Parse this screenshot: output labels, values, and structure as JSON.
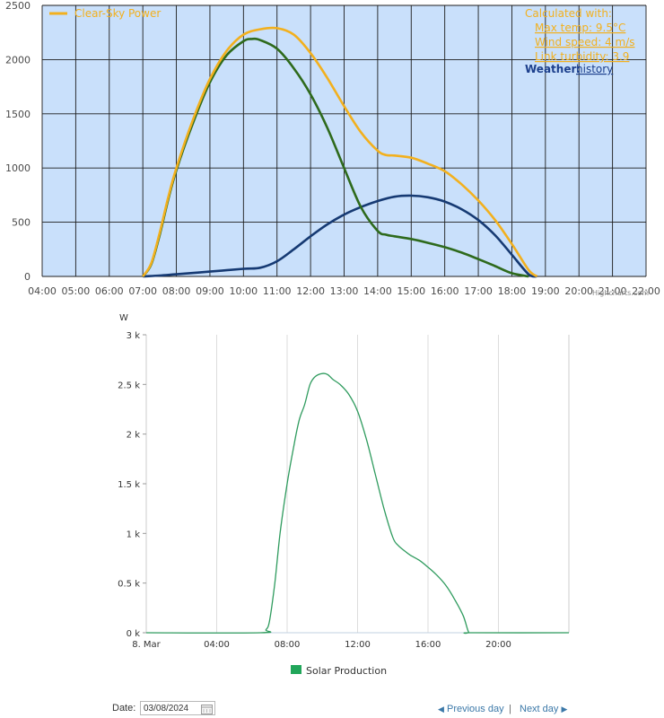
{
  "chart_data": [
    {
      "type": "line",
      "x_ticks": [
        "04:00",
        "05:00",
        "06:00",
        "07:00",
        "08:00",
        "09:00",
        "10:00",
        "11:00",
        "12:00",
        "13:00",
        "14:00",
        "15:00",
        "16:00",
        "17:00",
        "18:00",
        "19:00",
        "20:00",
        "21:00",
        "22:00"
      ],
      "y_ticks": [
        "0",
        "500",
        "1000",
        "1500",
        "2000",
        "2500"
      ],
      "ylim": [
        0,
        2500
      ],
      "xlim": [
        4,
        22
      ],
      "background": "#c9e0fb",
      "grid": true,
      "legend": {
        "position": "top-left",
        "label": "Clear-Sky Power",
        "color": "#f2b01e"
      },
      "series": [
        {
          "name": "Clear-Sky Power",
          "color": "#f2b01e",
          "points": [
            [
              7.0,
              0
            ],
            [
              7.25,
              120
            ],
            [
              7.5,
              400
            ],
            [
              7.75,
              720
            ],
            [
              8.0,
              1000
            ],
            [
              8.5,
              1450
            ],
            [
              9.0,
              1820
            ],
            [
              9.5,
              2080
            ],
            [
              10.0,
              2230
            ],
            [
              10.5,
              2280
            ],
            [
              11.0,
              2290
            ],
            [
              11.5,
              2230
            ],
            [
              12.0,
              2060
            ],
            [
              12.5,
              1830
            ],
            [
              13.0,
              1570
            ],
            [
              13.5,
              1330
            ],
            [
              14.0,
              1160
            ],
            [
              14.25,
              1120
            ],
            [
              14.5,
              1115
            ],
            [
              15.0,
              1095
            ],
            [
              15.5,
              1040
            ],
            [
              16.0,
              970
            ],
            [
              16.5,
              850
            ],
            [
              17.0,
              700
            ],
            [
              17.5,
              520
            ],
            [
              18.0,
              300
            ],
            [
              18.5,
              60
            ],
            [
              18.75,
              0
            ]
          ]
        },
        {
          "color": "#2e6a1c",
          "points": [
            [
              7.0,
              0
            ],
            [
              7.25,
              110
            ],
            [
              7.5,
              380
            ],
            [
              7.75,
              700
            ],
            [
              8.0,
              980
            ],
            [
              8.5,
              1420
            ],
            [
              9.0,
              1790
            ],
            [
              9.5,
              2040
            ],
            [
              10.0,
              2170
            ],
            [
              10.25,
              2190
            ],
            [
              10.5,
              2180
            ],
            [
              11.0,
              2100
            ],
            [
              11.5,
              1920
            ],
            [
              12.0,
              1680
            ],
            [
              12.5,
              1370
            ],
            [
              13.0,
              1000
            ],
            [
              13.5,
              640
            ],
            [
              14.0,
              420
            ],
            [
              14.25,
              385
            ],
            [
              14.5,
              370
            ],
            [
              15.0,
              345
            ],
            [
              15.5,
              310
            ],
            [
              16.0,
              270
            ],
            [
              16.5,
              220
            ],
            [
              17.0,
              160
            ],
            [
              17.5,
              95
            ],
            [
              18.0,
              30
            ],
            [
              18.5,
              0
            ]
          ]
        },
        {
          "color": "#163a73",
          "points": [
            [
              7.0,
              0
            ],
            [
              7.5,
              8
            ],
            [
              8.0,
              20
            ],
            [
              9.0,
              45
            ],
            [
              10.0,
              70
            ],
            [
              10.5,
              80
            ],
            [
              11.0,
              140
            ],
            [
              11.5,
              250
            ],
            [
              12.0,
              370
            ],
            [
              12.5,
              480
            ],
            [
              13.0,
              570
            ],
            [
              13.5,
              640
            ],
            [
              14.0,
              695
            ],
            [
              14.5,
              735
            ],
            [
              15.0,
              745
            ],
            [
              15.5,
              730
            ],
            [
              16.0,
              690
            ],
            [
              16.5,
              620
            ],
            [
              17.0,
              520
            ],
            [
              17.5,
              380
            ],
            [
              18.0,
              200
            ],
            [
              18.5,
              20
            ],
            [
              18.75,
              0
            ]
          ]
        }
      ],
      "info": {
        "heading": "Calculated with:",
        "items": [
          "Max temp: 9.5°C",
          "Wind speed: 4 m/s",
          "Link turbidity: 3.9"
        ],
        "weather_label": "Weather:",
        "weather_link": "history"
      },
      "credit": "Highcharts.com"
    },
    {
      "type": "area",
      "ylabel": "W",
      "y_ticks": [
        "0 k",
        "0.5 k",
        "1 k",
        "1.5 k",
        "2 k",
        "2.5 k",
        "3 k"
      ],
      "ylim": [
        0,
        3000
      ],
      "x_ticks": [
        "8. Mar",
        "04:00",
        "08:00",
        "12:00",
        "16:00",
        "20:00"
      ],
      "xlim": [
        0,
        24
      ],
      "legend": {
        "position": "bottom-center",
        "label": "Solar Production",
        "color": "#21a65a"
      },
      "series": [
        {
          "name": "Solar Production",
          "color": "#2f9b5e",
          "points": [
            [
              0,
              0
            ],
            [
              6.5,
              0
            ],
            [
              6.8,
              30
            ],
            [
              7.0,
              120
            ],
            [
              7.3,
              500
            ],
            [
              7.6,
              1000
            ],
            [
              8.0,
              1500
            ],
            [
              8.4,
              1900
            ],
            [
              8.7,
              2150
            ],
            [
              9.0,
              2300
            ],
            [
              9.3,
              2500
            ],
            [
              9.6,
              2580
            ],
            [
              10.0,
              2610
            ],
            [
              10.3,
              2600
            ],
            [
              10.6,
              2550
            ],
            [
              11.0,
              2500
            ],
            [
              11.5,
              2400
            ],
            [
              12.0,
              2230
            ],
            [
              12.5,
              1950
            ],
            [
              13.0,
              1600
            ],
            [
              13.5,
              1250
            ],
            [
              14.0,
              960
            ],
            [
              14.3,
              880
            ],
            [
              14.7,
              820
            ],
            [
              15.0,
              780
            ],
            [
              15.5,
              730
            ],
            [
              16.0,
              660
            ],
            [
              16.5,
              580
            ],
            [
              17.0,
              480
            ],
            [
              17.5,
              340
            ],
            [
              18.0,
              170
            ],
            [
              18.3,
              10
            ],
            [
              18.5,
              0
            ],
            [
              24,
              0
            ]
          ]
        }
      ]
    }
  ],
  "footer": {
    "date_label": "Date:",
    "date_value": "03/08/2024",
    "prev_label": "Previous day",
    "separator": "|",
    "next_label": "Next day"
  }
}
